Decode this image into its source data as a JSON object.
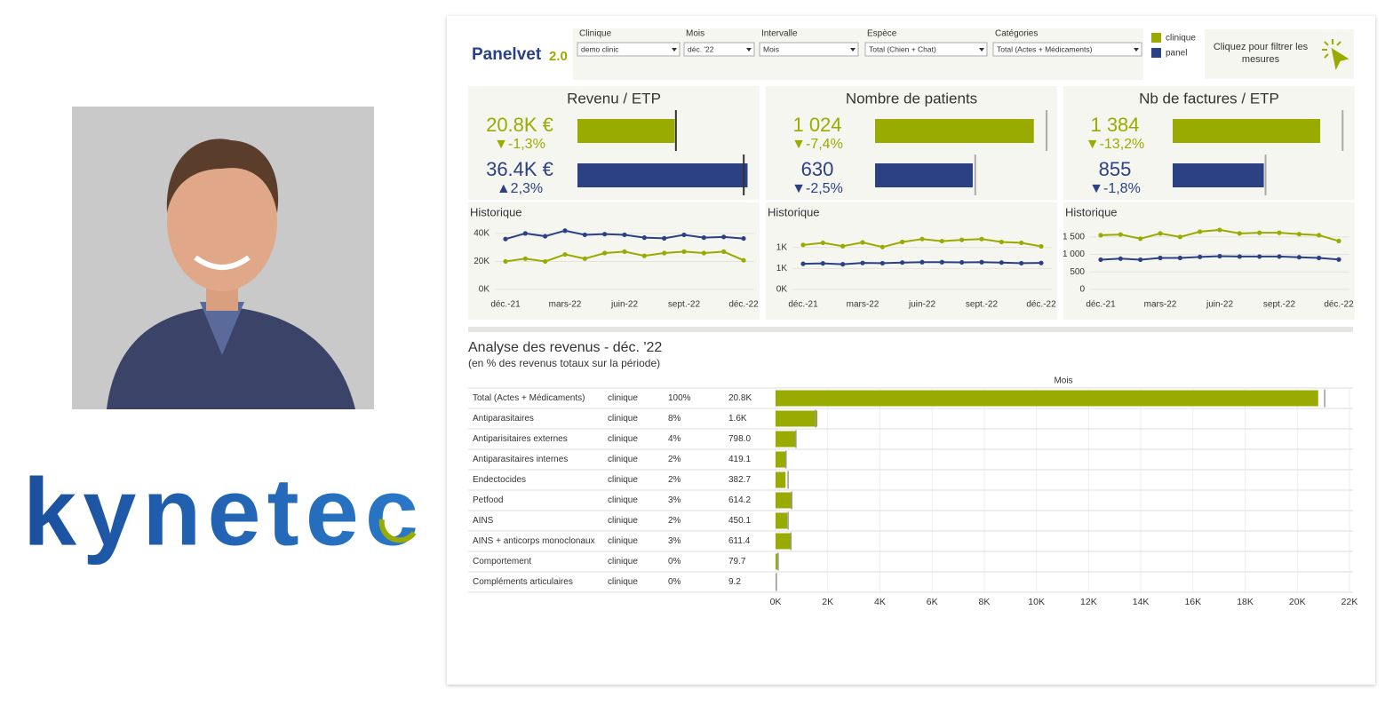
{
  "brand": "kynetec",
  "logo": {
    "name": "Panelvet",
    "version": "2.0"
  },
  "filters": [
    {
      "label": "Clinique",
      "value": "demo clinic"
    },
    {
      "label": "Mois",
      "value": "déc. '22"
    },
    {
      "label": "Intervalle",
      "value": "Mois"
    },
    {
      "label": "Espèce",
      "value": "Total (Chien + Chat)"
    },
    {
      "label": "Catégories",
      "value": "Total (Actes + Médicaments)"
    }
  ],
  "legend": [
    {
      "name": "clinique",
      "color": "#9aab00"
    },
    {
      "name": "panel",
      "color": "#2b4184"
    }
  ],
  "filter_button": "Cliquez pour filtrer les mesures",
  "kpis": [
    {
      "title": "Revenu / ETP",
      "xlim": [
        0,
        36500
      ],
      "rows": [
        {
          "value": 20800,
          "value_label": "20.8K €",
          "change": -1.3,
          "change_label": "▼-1,3%",
          "reference": 21070
        },
        {
          "value": 36400,
          "value_label": "36.4K €",
          "change": 2.3,
          "change_label": "▲2,3%",
          "reference": 35580
        }
      ]
    },
    {
      "title": "Nombre de patients",
      "xlim": [
        0,
        1100
      ],
      "rows": [
        {
          "value": 1024,
          "value_label": "1 024",
          "change": -7.4,
          "change_label": "▼-7,4%",
          "reference": 1106
        },
        {
          "value": 630,
          "change": -2.5,
          "change_label": "▼-2,5%",
          "reference": 646
        }
      ]
    },
    {
      "title": "Nb de factures / ETP",
      "xlim": [
        0,
        1600
      ],
      "rows": [
        {
          "value": 1384,
          "value_label": "1 384",
          "change": -13.2,
          "change_label": "▼-13,2%",
          "reference": 1594
        },
        {
          "value": 855,
          "change": -1.8,
          "change_label": "▼-1,8%",
          "reference": 871
        }
      ]
    }
  ],
  "history": [
    {
      "title": "Historique",
      "categories": [
        "déc.-21",
        null,
        null,
        "mars-22",
        null,
        null,
        "juin-22",
        null,
        null,
        "sept.-22",
        null,
        null,
        "déc.-22"
      ],
      "ylim": [
        0,
        45000
      ],
      "yticks": [
        {
          "value": 0,
          "label": "0K"
        },
        {
          "value": 20000,
          "label": "20K"
        },
        {
          "value": 40000,
          "label": "40K"
        }
      ],
      "series": [
        {
          "values": [
            20000,
            22000,
            20000,
            25000,
            22000,
            26000,
            27000,
            24000,
            26000,
            27000,
            26000,
            27000,
            20800
          ]
        },
        {
          "values": [
            36000,
            40000,
            38000,
            42000,
            39000,
            39500,
            39000,
            37000,
            36500,
            39000,
            37000,
            37500,
            36400
          ]
        }
      ]
    },
    {
      "title": "Historique",
      "categories": [
        "déc.-21",
        null,
        null,
        "mars-22",
        null,
        null,
        "juin-22",
        null,
        null,
        "sept.-22",
        null,
        null,
        "déc.-22"
      ],
      "ylim": [
        0,
        1500
      ],
      "yticks": [
        {
          "value": 0,
          "label": "0K"
        },
        {
          "value": 500,
          "label": "1K"
        },
        {
          "value": 1000,
          "label": "1K"
        }
      ],
      "series": [
        {
          "values": [
            1060,
            1110,
            1030,
            1120,
            1010,
            1130,
            1200,
            1150,
            1180,
            1200,
            1130,
            1110,
            1024
          ]
        },
        {
          "values": [
            610,
            620,
            600,
            630,
            625,
            640,
            650,
            650,
            645,
            650,
            640,
            625,
            630
          ]
        }
      ]
    },
    {
      "title": "Historique",
      "categories": [
        "déc.-21",
        null,
        null,
        "mars-22",
        null,
        null,
        "juin-22",
        null,
        null,
        "sept.-22",
        null,
        null,
        "déc.-22"
      ],
      "ylim": [
        0,
        1800
      ],
      "yticks": [
        0,
        500,
        {
          "value": 1000,
          "label": "1 000"
        },
        {
          "value": 1500,
          "label": "1 500"
        }
      ],
      "series": [
        {
          "values": [
            1550,
            1570,
            1450,
            1600,
            1500,
            1650,
            1700,
            1600,
            1620,
            1620,
            1580,
            1550,
            1384
          ]
        },
        {
          "values": [
            850,
            880,
            850,
            900,
            900,
            930,
            950,
            940,
            940,
            940,
            920,
            900,
            855
          ]
        }
      ]
    }
  ],
  "analysis": {
    "title": "Analyse des revenus - déc. '22",
    "subtitle": "(en % des revenus totaux sur la période)",
    "axis_label": "Mois",
    "xlim": [
      0,
      22000
    ],
    "xticks": [
      {
        "value": 0,
        "label": "0K"
      },
      {
        "value": 2000,
        "label": "2K"
      },
      {
        "value": 4000,
        "label": "4K"
      },
      {
        "value": 6000,
        "label": "6K"
      },
      {
        "value": 8000,
        "label": "8K"
      },
      {
        "value": 10000,
        "label": "10K"
      },
      {
        "value": 12000,
        "label": "12K"
      },
      {
        "value": 14000,
        "label": "14K"
      },
      {
        "value": 16000,
        "label": "16K"
      },
      {
        "value": 18000,
        "label": "18K"
      },
      {
        "value": 20000,
        "label": "20K"
      },
      {
        "value": 22000,
        "label": "22K"
      }
    ],
    "rows": [
      {
        "name": "Total (Actes + Médicaments)",
        "group": "clinique",
        "pct": 100,
        "pct_label": "100%",
        "value": 20800,
        "value_label": "20.8K",
        "reference": 21050
      },
      {
        "name": "Antiparasitaires",
        "group": "clinique",
        "pct": 8,
        "pct_label": "8%",
        "value": 1600,
        "value_label": "1.6K",
        "reference": 1530
      },
      {
        "name": "Antiparisitaires externes",
        "group": "clinique",
        "pct": 4,
        "pct_label": "4%",
        "value": 798,
        "value_label": "798.0",
        "reference": 780
      },
      {
        "name": "Antiparasitaires internes",
        "group": "clinique",
        "pct": 2,
        "pct_label": "2%",
        "value": 419.1,
        "reference": 400
      },
      {
        "name": "Endectocides",
        "group": "clinique",
        "pct": 2,
        "pct_label": "2%",
        "value": 382.7,
        "reference": 480
      },
      {
        "name": "Petfood",
        "group": "clinique",
        "pct": 3,
        "pct_label": "3%",
        "value": 614.2,
        "reference": 620
      },
      {
        "name": "AINS",
        "group": "clinique",
        "pct": 2,
        "pct_label": "2%",
        "value": 450.1,
        "reference": 480
      },
      {
        "name": "AINS + anticorps monoclonaux",
        "group": "clinique",
        "pct": 3,
        "pct_label": "3%",
        "value": 611.4,
        "reference": 590
      },
      {
        "name": "Comportement",
        "group": "clinique",
        "pct": 0,
        "pct_label": "0%",
        "value": 79.7,
        "reference": 100
      },
      {
        "name": "Compléments articulaires",
        "group": "clinique",
        "pct": 0,
        "pct_label": "0%",
        "value": 9.2,
        "reference": 30
      }
    ]
  }
}
